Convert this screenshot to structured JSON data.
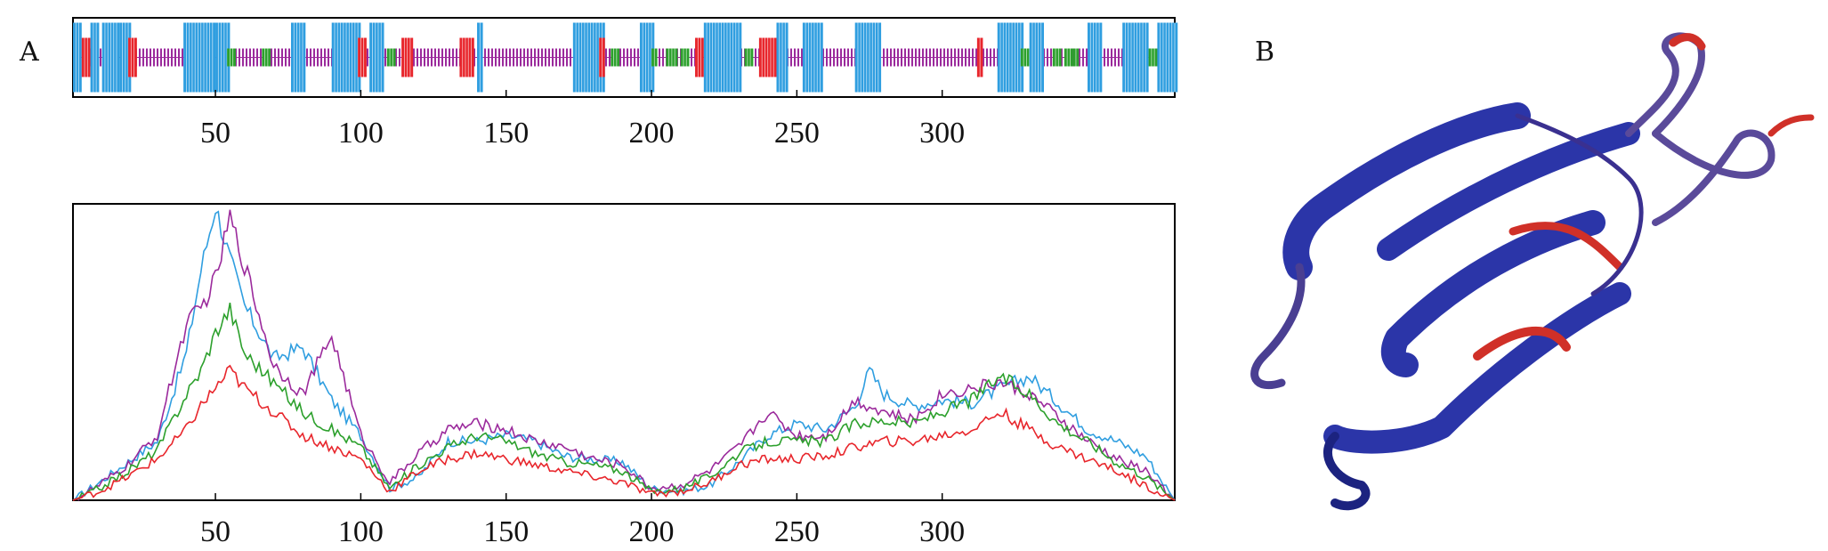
{
  "figure": {
    "panel_a_label": "A",
    "panel_b_label": "B"
  },
  "chart_data": [
    {
      "type": "sequence-track",
      "xlim": [
        1,
        380
      ],
      "xticks": [
        50,
        100,
        150,
        200,
        250,
        300
      ],
      "tick_labels": [
        "50",
        "100",
        "150",
        "200",
        "250",
        "300"
      ],
      "legend": "none",
      "grid": false,
      "colors": {
        "blue": "#2f9ee0",
        "red": "#e8262c",
        "green": "#2ca02c",
        "magenta": "#9b2a9c"
      },
      "segments": [
        {
          "color": "blue",
          "start": 1,
          "end": 3
        },
        {
          "color": "red",
          "start": 4,
          "end": 6
        },
        {
          "color": "blue",
          "start": 7,
          "end": 9
        },
        {
          "color": "blue",
          "start": 11,
          "end": 16
        },
        {
          "color": "blue",
          "start": 17,
          "end": 20
        },
        {
          "color": "red",
          "start": 20,
          "end": 22
        },
        {
          "color": "blue",
          "start": 39,
          "end": 49
        },
        {
          "color": "blue",
          "start": 50,
          "end": 54
        },
        {
          "color": "green",
          "start": 54,
          "end": 56
        },
        {
          "color": "green",
          "start": 66,
          "end": 68
        },
        {
          "color": "blue",
          "start": 76,
          "end": 80
        },
        {
          "color": "blue",
          "start": 90,
          "end": 99
        },
        {
          "color": "red",
          "start": 99,
          "end": 101
        },
        {
          "color": "blue",
          "start": 103,
          "end": 107
        },
        {
          "color": "green",
          "start": 109,
          "end": 111
        },
        {
          "color": "red",
          "start": 114,
          "end": 117
        },
        {
          "color": "red",
          "start": 134,
          "end": 138
        },
        {
          "color": "blue",
          "start": 140,
          "end": 141
        },
        {
          "color": "blue",
          "start": 173,
          "end": 183
        },
        {
          "color": "red",
          "start": 182,
          "end": 183
        },
        {
          "color": "green",
          "start": 186,
          "end": 188
        },
        {
          "color": "blue",
          "start": 196,
          "end": 200
        },
        {
          "color": "green",
          "start": 200,
          "end": 201
        },
        {
          "color": "green",
          "start": 205,
          "end": 208
        },
        {
          "color": "green",
          "start": 210,
          "end": 212
        },
        {
          "color": "red",
          "start": 215,
          "end": 217
        },
        {
          "color": "blue",
          "start": 218,
          "end": 230
        },
        {
          "color": "green",
          "start": 232,
          "end": 234
        },
        {
          "color": "red",
          "start": 237,
          "end": 242
        },
        {
          "color": "blue",
          "start": 243,
          "end": 246
        },
        {
          "color": "blue",
          "start": 252,
          "end": 258
        },
        {
          "color": "blue",
          "start": 270,
          "end": 278
        },
        {
          "color": "red",
          "start": 312,
          "end": 313
        },
        {
          "color": "blue",
          "start": 319,
          "end": 327
        },
        {
          "color": "green",
          "start": 327,
          "end": 330
        },
        {
          "color": "blue",
          "start": 330,
          "end": 334
        },
        {
          "color": "green",
          "start": 338,
          "end": 340
        },
        {
          "color": "green",
          "start": 342,
          "end": 344
        },
        {
          "color": "green",
          "start": 345,
          "end": 346
        },
        {
          "color": "blue",
          "start": 350,
          "end": 354
        },
        {
          "color": "blue",
          "start": 362,
          "end": 370
        },
        {
          "color": "green",
          "start": 371,
          "end": 373
        },
        {
          "color": "blue",
          "start": 374,
          "end": 380
        }
      ]
    },
    {
      "type": "line",
      "xlim": [
        1,
        380
      ],
      "ylim": [
        0,
        1
      ],
      "xticks": [
        50,
        100,
        150,
        200,
        250,
        300
      ],
      "tick_labels": [
        "50",
        "100",
        "150",
        "200",
        "250",
        "300"
      ],
      "grid": false,
      "legend": "none",
      "yticks_shown": false,
      "series": [
        {
          "color": "#2f9ee0",
          "x": [
            1,
            10,
            20,
            30,
            40,
            45,
            50,
            55,
            60,
            70,
            80,
            90,
            100,
            110,
            120,
            130,
            140,
            150,
            160,
            170,
            180,
            190,
            200,
            210,
            220,
            230,
            240,
            250,
            260,
            270,
            275,
            280,
            290,
            300,
            310,
            320,
            330,
            340,
            350,
            360,
            370,
            380
          ],
          "y": [
            0.0,
            0.06,
            0.13,
            0.2,
            0.5,
            0.78,
            1.0,
            0.82,
            0.66,
            0.48,
            0.52,
            0.34,
            0.22,
            0.04,
            0.08,
            0.2,
            0.2,
            0.22,
            0.2,
            0.15,
            0.14,
            0.13,
            0.04,
            0.03,
            0.05,
            0.13,
            0.22,
            0.26,
            0.24,
            0.32,
            0.44,
            0.36,
            0.32,
            0.34,
            0.33,
            0.38,
            0.42,
            0.33,
            0.24,
            0.2,
            0.15,
            0.0
          ]
        },
        {
          "color": "#9b2a9c",
          "x": [
            1,
            10,
            20,
            30,
            40,
            45,
            50,
            55,
            60,
            70,
            80,
            90,
            100,
            110,
            120,
            130,
            140,
            150,
            160,
            170,
            180,
            190,
            200,
            210,
            220,
            230,
            240,
            250,
            260,
            270,
            280,
            290,
            300,
            310,
            320,
            330,
            340,
            350,
            360,
            370,
            380
          ],
          "y": [
            0.0,
            0.05,
            0.12,
            0.22,
            0.6,
            0.65,
            0.75,
            0.96,
            0.8,
            0.46,
            0.36,
            0.56,
            0.22,
            0.06,
            0.16,
            0.24,
            0.26,
            0.24,
            0.2,
            0.18,
            0.14,
            0.12,
            0.04,
            0.05,
            0.1,
            0.18,
            0.3,
            0.22,
            0.22,
            0.34,
            0.3,
            0.27,
            0.36,
            0.38,
            0.4,
            0.36,
            0.28,
            0.2,
            0.14,
            0.1,
            0.0
          ]
        },
        {
          "color": "#2ca02c",
          "x": [
            1,
            10,
            20,
            30,
            40,
            45,
            50,
            55,
            60,
            70,
            80,
            90,
            100,
            110,
            120,
            130,
            140,
            150,
            160,
            170,
            180,
            190,
            200,
            210,
            220,
            230,
            240,
            250,
            260,
            270,
            280,
            290,
            300,
            310,
            320,
            330,
            340,
            350,
            360,
            370,
            380
          ],
          "y": [
            0.0,
            0.04,
            0.1,
            0.17,
            0.36,
            0.44,
            0.57,
            0.65,
            0.5,
            0.4,
            0.3,
            0.24,
            0.18,
            0.04,
            0.12,
            0.18,
            0.22,
            0.2,
            0.16,
            0.13,
            0.12,
            0.1,
            0.03,
            0.04,
            0.08,
            0.16,
            0.2,
            0.2,
            0.2,
            0.26,
            0.27,
            0.26,
            0.3,
            0.34,
            0.42,
            0.36,
            0.26,
            0.2,
            0.13,
            0.08,
            0.0
          ]
        },
        {
          "color": "#e8262c",
          "x": [
            1,
            10,
            20,
            30,
            40,
            45,
            50,
            55,
            60,
            70,
            80,
            90,
            100,
            110,
            120,
            130,
            140,
            150,
            160,
            170,
            180,
            190,
            200,
            210,
            220,
            230,
            240,
            250,
            260,
            270,
            280,
            290,
            300,
            310,
            320,
            330,
            340,
            350,
            360,
            370,
            380
          ],
          "y": [
            0.0,
            0.03,
            0.08,
            0.14,
            0.24,
            0.32,
            0.38,
            0.44,
            0.38,
            0.3,
            0.22,
            0.18,
            0.14,
            0.03,
            0.1,
            0.14,
            0.16,
            0.14,
            0.12,
            0.1,
            0.08,
            0.06,
            0.02,
            0.03,
            0.06,
            0.12,
            0.14,
            0.14,
            0.15,
            0.18,
            0.2,
            0.2,
            0.22,
            0.24,
            0.3,
            0.24,
            0.18,
            0.14,
            0.1,
            0.05,
            0.0
          ]
        }
      ]
    }
  ],
  "structure_colors": {
    "ribbon_main": "#2b35a8",
    "ribbon_dark": "#1c2380",
    "ribbon_mid": "#5a4a9a",
    "ribbon_red": "#d03028"
  }
}
